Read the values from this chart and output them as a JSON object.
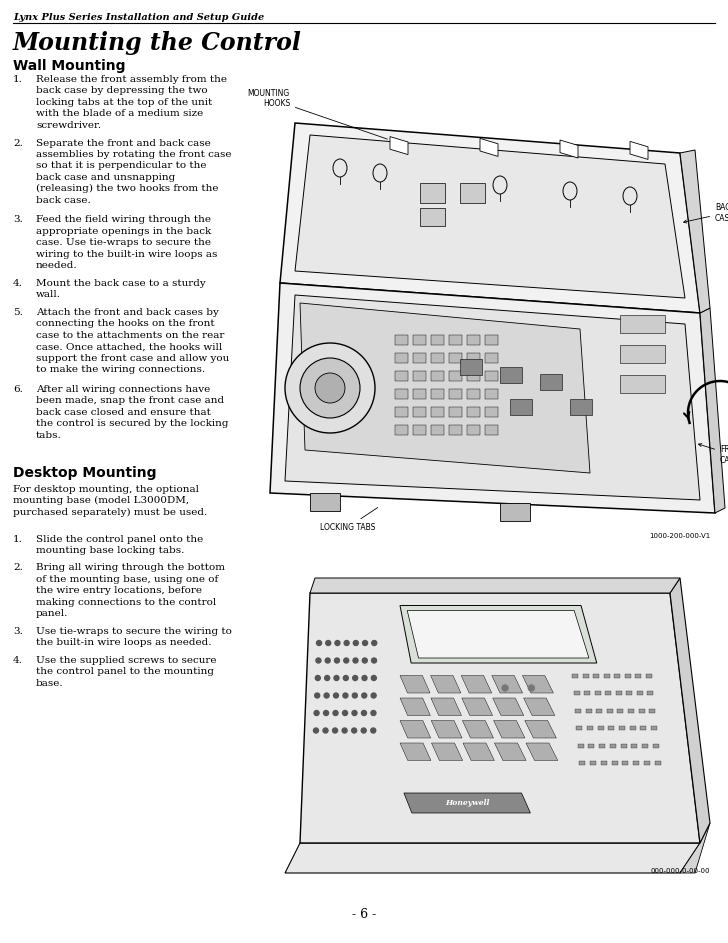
{
  "page_header": "Lynx Plus Series Installation and Setup Guide",
  "main_title": "Mounting the Control",
  "section1_title": "Wall Mounting",
  "wall_steps": [
    "Release the front assembly from the\nback case by depressing the two\nlocking tabs at the top of the unit\nwith the blade of a medium size\nscrewdriver.",
    "Separate the front and back case\nassemblies by rotating the front case\nso that it is perpendicular to the\nback case and unsnapping\n(releasing) the two hooks from the\nback case.",
    "Feed the field wiring through the\nappropriate openings in the back\ncase. Use tie-wraps to secure the\nwiring to the built-in wire loops as\nneeded.",
    "Mount the back case to a sturdy\nwall.",
    "Attach the front and back cases by\nconnecting the hooks on the front\ncase to the attachments on the rear\ncase. Once attached, the hooks will\nsupport the front case and allow you\nto make the wiring connections.",
    "After all wiring connections have\nbeen made, snap the front case and\nback case closed and ensure that\nthe control is secured by the locking\ntabs."
  ],
  "section2_title": "Desktop Mounting",
  "desktop_intro": "For desktop mounting, the optional\nmounting base (model L3000DM,\npurchased separately) must be used.",
  "desktop_steps": [
    "Slide the control panel onto the\nmounting base locking tabs.",
    "Bring all wiring through the bottom\nof the mounting base, using one of\nthe wire entry locations, before\nmaking connections to the control\npanel.",
    "Use tie-wraps to secure the wiring to\nthe built-in wire loops as needed.",
    "Use the supplied screws to secure\nthe control panel to the mounting\nbase."
  ],
  "wall_doc_num": "1000-200-000-V1",
  "desk_doc_num": "000-000-0-00-00",
  "page_number": "- 6 -",
  "bg_color": "#ffffff",
  "text_color": "#000000"
}
